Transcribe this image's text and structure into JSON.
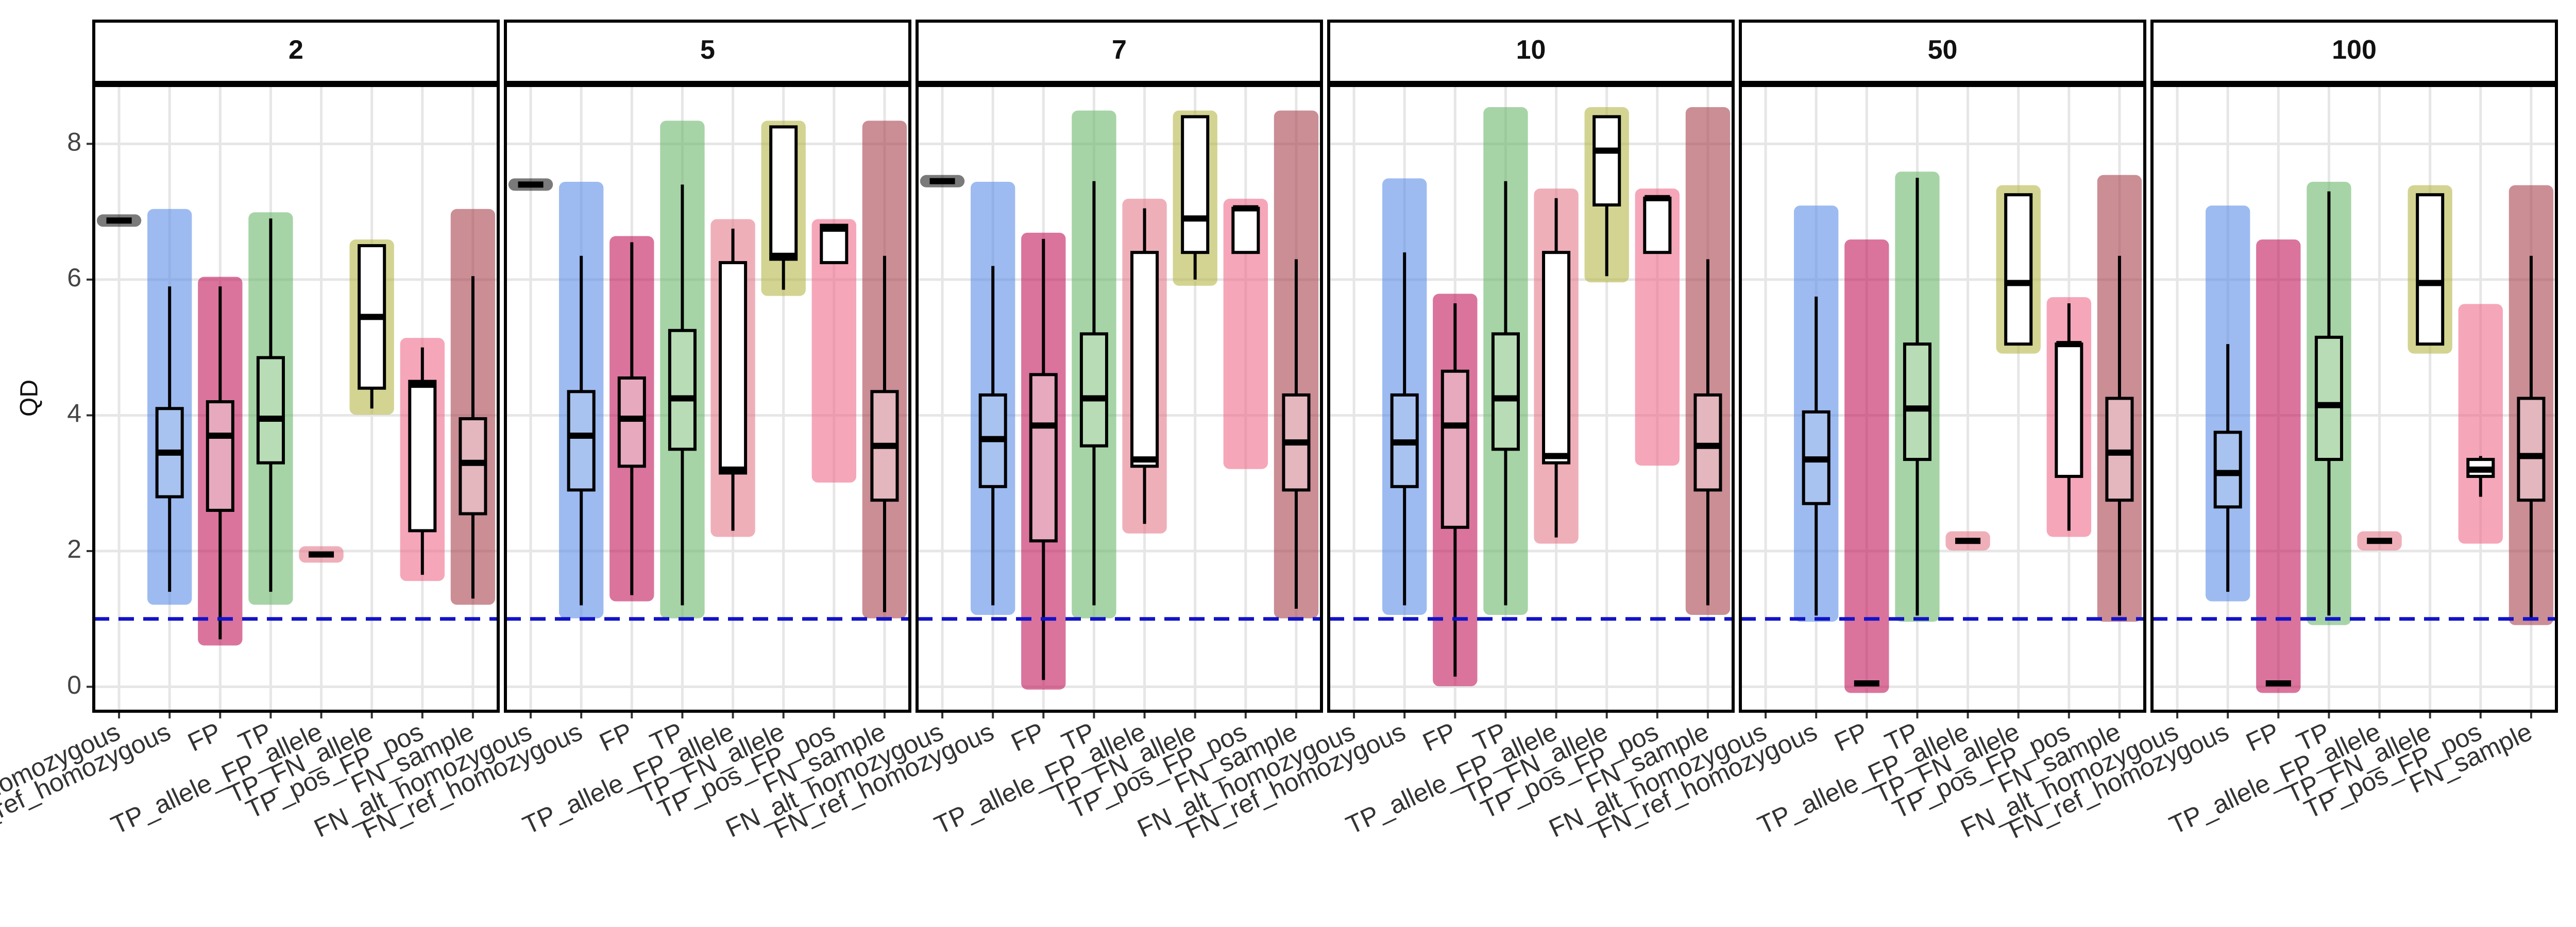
{
  "chart_data": {
    "type": "boxplot",
    "y_label": "QD",
    "ylim": [
      -0.36,
      8.86
    ],
    "yticks": [
      0,
      2,
      4,
      6,
      8
    ],
    "grid": true,
    "hline": {
      "value": 1,
      "color": "#1212c8"
    },
    "categories": [
      "FN_alt_homozygous",
      "FN_ref_homozygous",
      "FP",
      "TP",
      "TP_allele_FP_allele",
      "TP_FN_allele",
      "TP_pos_FP_pos",
      "FN_sample"
    ],
    "colors": [
      "#222222",
      "#5b8de8",
      "#c2185b",
      "#6db86b",
      "#e57a8a",
      "#b5b84a",
      "#f06b8a",
      "#a8434f"
    ],
    "box_fills": [
      "#ffffff",
      "#a9c3f0",
      "#e6a9bd",
      "#b8dcb5",
      "#ffffff",
      "#ffffff",
      "#ffffff",
      "#e3b7bd"
    ],
    "facets": [
      {
        "title": "2",
        "boxes": [
          {
            "low": 6.87,
            "q1": 6.87,
            "median": 6.87,
            "q3": 6.87,
            "high": 6.87,
            "point_range": [
              6.87,
              6.87
            ]
          },
          {
            "low": 1.4,
            "q1": 2.8,
            "median": 3.45,
            "q3": 4.1,
            "high": 5.9,
            "point_range": [
              1.3,
              6.95
            ]
          },
          {
            "low": 0.7,
            "q1": 2.6,
            "median": 3.7,
            "q3": 4.2,
            "high": 5.9,
            "point_range": [
              0.7,
              5.95
            ]
          },
          {
            "low": 1.4,
            "q1": 3.3,
            "median": 3.95,
            "q3": 4.85,
            "high": 6.9,
            "point_range": [
              1.3,
              6.9
            ]
          },
          {
            "low": 1.95,
            "q1": 1.95,
            "median": 1.95,
            "q3": 1.95,
            "high": 1.95,
            "point_range": [
              1.92,
              1.98
            ]
          },
          {
            "low": 4.1,
            "q1": 4.4,
            "median": 5.45,
            "q3": 6.5,
            "high": 6.5,
            "point_range": [
              4.1,
              6.5
            ]
          },
          {
            "low": 1.65,
            "q1": 2.3,
            "median": 4.45,
            "q3": 4.5,
            "high": 5.0,
            "point_range": [
              1.65,
              5.05
            ]
          },
          {
            "low": 1.3,
            "q1": 2.55,
            "median": 3.3,
            "q3": 3.95,
            "high": 6.05,
            "point_range": [
              1.3,
              6.95
            ]
          }
        ]
      },
      {
        "title": "5",
        "boxes": [
          {
            "low": 7.4,
            "q1": 7.4,
            "median": 7.4,
            "q3": 7.4,
            "high": 7.4,
            "point_range": [
              7.4,
              7.4
            ]
          },
          {
            "low": 1.2,
            "q1": 2.9,
            "median": 3.7,
            "q3": 4.35,
            "high": 6.35,
            "point_range": [
              1.1,
              7.35
            ]
          },
          {
            "low": 1.35,
            "q1": 3.25,
            "median": 3.95,
            "q3": 4.55,
            "high": 6.55,
            "point_range": [
              1.35,
              6.55
            ]
          },
          {
            "low": 1.2,
            "q1": 3.5,
            "median": 4.25,
            "q3": 5.25,
            "high": 7.4,
            "point_range": [
              1.1,
              8.25
            ]
          },
          {
            "low": 2.3,
            "q1": 3.15,
            "median": 3.2,
            "q3": 6.25,
            "high": 6.75,
            "point_range": [
              2.3,
              6.8
            ]
          },
          {
            "low": 5.85,
            "q1": 6.3,
            "median": 6.35,
            "q3": 8.25,
            "high": 8.25,
            "point_range": [
              5.85,
              8.25
            ]
          },
          {
            "low": 6.25,
            "q1": 6.25,
            "median": 6.75,
            "q3": 6.8,
            "high": 6.8,
            "point_range": [
              3.1,
              6.8
            ]
          },
          {
            "low": 1.1,
            "q1": 2.75,
            "median": 3.55,
            "q3": 4.35,
            "high": 6.35,
            "point_range": [
              1.1,
              8.25
            ]
          }
        ]
      },
      {
        "title": "7",
        "boxes": [
          {
            "low": 7.45,
            "q1": 7.45,
            "median": 7.45,
            "q3": 7.45,
            "high": 7.45,
            "point_range": [
              7.45,
              7.45
            ]
          },
          {
            "low": 1.2,
            "q1": 2.95,
            "median": 3.65,
            "q3": 4.3,
            "high": 6.2,
            "point_range": [
              1.15,
              7.35
            ]
          },
          {
            "low": 0.1,
            "q1": 2.15,
            "median": 3.85,
            "q3": 4.6,
            "high": 6.6,
            "point_range": [
              0.05,
              6.6
            ]
          },
          {
            "low": 1.2,
            "q1": 3.55,
            "median": 4.25,
            "q3": 5.2,
            "high": 7.45,
            "point_range": [
              1.1,
              8.4
            ]
          },
          {
            "low": 2.4,
            "q1": 3.25,
            "median": 3.35,
            "q3": 6.4,
            "high": 7.05,
            "point_range": [
              2.35,
              7.1
            ]
          },
          {
            "low": 6.0,
            "q1": 6.4,
            "median": 6.9,
            "q3": 8.4,
            "high": 8.4,
            "point_range": [
              6.0,
              8.4
            ]
          },
          {
            "low": 6.4,
            "q1": 6.4,
            "median": 7.05,
            "q3": 7.05,
            "high": 7.05,
            "point_range": [
              3.3,
              7.1
            ]
          },
          {
            "low": 1.15,
            "q1": 2.9,
            "median": 3.6,
            "q3": 4.3,
            "high": 6.3,
            "point_range": [
              1.1,
              8.4
            ]
          }
        ]
      },
      {
        "title": "10",
        "boxes": [
          null,
          {
            "low": 1.2,
            "q1": 2.95,
            "median": 3.6,
            "q3": 4.3,
            "high": 6.4,
            "point_range": [
              1.15,
              7.4
            ]
          },
          {
            "low": 0.15,
            "q1": 2.35,
            "median": 3.85,
            "q3": 4.65,
            "high": 5.65,
            "point_range": [
              0.1,
              5.7
            ]
          },
          {
            "low": 1.2,
            "q1": 3.5,
            "median": 4.25,
            "q3": 5.2,
            "high": 7.45,
            "point_range": [
              1.15,
              8.45
            ]
          },
          {
            "low": 2.2,
            "q1": 3.3,
            "median": 3.4,
            "q3": 6.4,
            "high": 7.2,
            "point_range": [
              2.2,
              7.25
            ]
          },
          {
            "low": 6.05,
            "q1": 7.1,
            "median": 7.9,
            "q3": 8.4,
            "high": 8.4,
            "point_range": [
              6.05,
              8.45
            ]
          },
          {
            "low": 6.4,
            "q1": 6.4,
            "median": 7.2,
            "q3": 7.2,
            "high": 7.2,
            "point_range": [
              3.35,
              7.25
            ]
          },
          {
            "low": 1.2,
            "q1": 2.9,
            "median": 3.55,
            "q3": 4.3,
            "high": 6.3,
            "point_range": [
              1.15,
              8.45
            ]
          }
        ]
      },
      {
        "title": "50",
        "boxes": [
          null,
          {
            "low": 1.05,
            "q1": 2.7,
            "median": 3.35,
            "q3": 4.05,
            "high": 5.75,
            "point_range": [
              1.05,
              7.0
            ]
          },
          {
            "low": 0.05,
            "q1": 0.05,
            "median": 0.05,
            "q3": 0.05,
            "high": 0.05,
            "point_range": [
              0.0,
              6.5
            ]
          },
          {
            "low": 1.05,
            "q1": 3.35,
            "median": 4.1,
            "q3": 5.05,
            "high": 7.5,
            "point_range": [
              1.05,
              7.5
            ]
          },
          {
            "low": 2.15,
            "q1": 2.15,
            "median": 2.15,
            "q3": 2.15,
            "high": 2.15,
            "point_range": [
              2.1,
              2.2
            ]
          },
          {
            "low": 5.05,
            "q1": 5.05,
            "median": 5.95,
            "q3": 7.25,
            "high": 7.25,
            "point_range": [
              5.0,
              7.3
            ]
          },
          {
            "low": 2.3,
            "q1": 3.1,
            "median": 5.05,
            "q3": 5.05,
            "high": 5.65,
            "point_range": [
              2.3,
              5.65
            ]
          },
          {
            "low": 1.05,
            "q1": 2.75,
            "median": 3.45,
            "q3": 4.25,
            "high": 6.35,
            "point_range": [
              1.05,
              7.45
            ]
          }
        ]
      },
      {
        "title": "100",
        "boxes": [
          null,
          {
            "low": 1.4,
            "q1": 2.65,
            "median": 3.15,
            "q3": 3.75,
            "high": 5.05,
            "point_range": [
              1.35,
              7.0
            ]
          },
          {
            "low": 0.05,
            "q1": 0.05,
            "median": 0.05,
            "q3": 0.05,
            "high": 0.05,
            "point_range": [
              0.0,
              6.5
            ]
          },
          {
            "low": 1.05,
            "q1": 3.35,
            "median": 4.15,
            "q3": 5.15,
            "high": 7.3,
            "point_range": [
              1.0,
              7.35
            ]
          },
          {
            "low": 2.15,
            "q1": 2.15,
            "median": 2.15,
            "q3": 2.15,
            "high": 2.15,
            "point_range": [
              2.1,
              2.2
            ]
          },
          {
            "low": 5.05,
            "q1": 5.05,
            "median": 5.95,
            "q3": 7.25,
            "high": 7.25,
            "point_range": [
              5.0,
              7.3
            ]
          },
          {
            "low": 2.8,
            "q1": 3.1,
            "median": 3.2,
            "q3": 3.35,
            "high": 3.4,
            "point_range": [
              2.2,
              5.55
            ]
          },
          {
            "low": 1.0,
            "q1": 2.75,
            "median": 3.4,
            "q3": 4.25,
            "high": 6.35,
            "point_range": [
              1.0,
              7.3
            ]
          }
        ]
      }
    ]
  }
}
